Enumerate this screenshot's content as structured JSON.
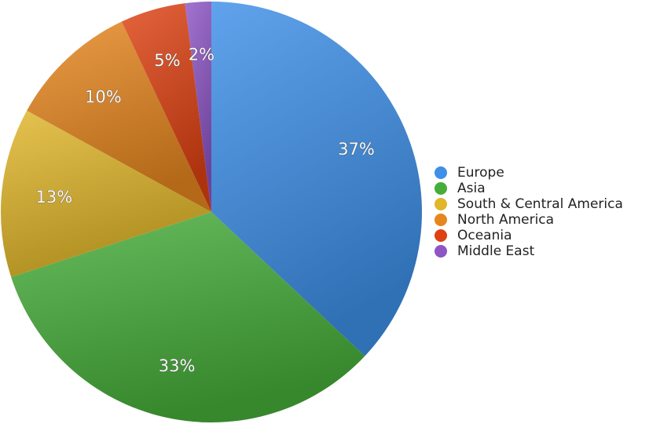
{
  "chart_data": {
    "type": "pie",
    "categories": [
      "Europe",
      "Asia",
      "South & Central America",
      "North America",
      "Oceania",
      "Middle East"
    ],
    "values": [
      37,
      33,
      13,
      10,
      5,
      2
    ],
    "labels": [
      "37%",
      "33%",
      "13%",
      "10%",
      "5%",
      "2%"
    ],
    "colors": [
      "#3d8fe8",
      "#46ad3a",
      "#e0b62a",
      "#e6861f",
      "#de4212",
      "#8d55c6"
    ],
    "start_angle_deg": 0,
    "direction": "clockwise",
    "legend_position": "right"
  }
}
